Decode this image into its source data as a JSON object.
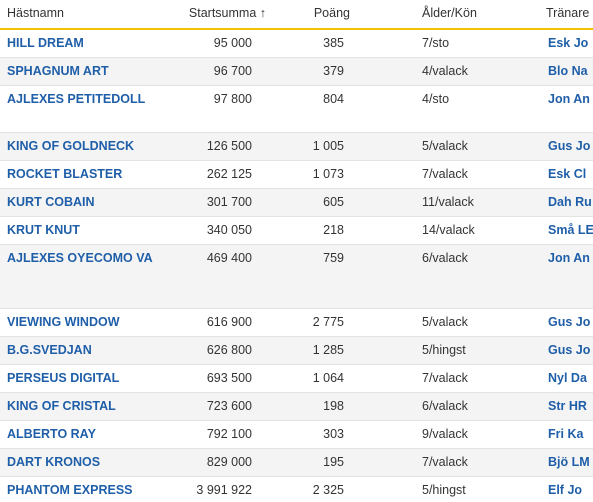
{
  "table": {
    "columns": [
      "Hästnamn",
      "Startsumma ↑",
      "Poäng",
      "Ålder/Kön",
      "Tränare"
    ],
    "rows": [
      [
        "HILL DREAM",
        "95 000",
        "385",
        "7/sto",
        "Esk Jo"
      ],
      [
        "SPHAGNUM ART",
        "96 700",
        "379",
        "4/valack",
        "Blo Na"
      ],
      [
        "AJLEXES PETITEDOLL",
        "97 800",
        "804",
        "4/sto",
        "Jon An"
      ],
      [
        "KING OF GOLDNECK",
        "126 500",
        "1 005",
        "5/valack",
        "Gus Jo"
      ],
      [
        "ROCKET BLASTER",
        "262 125",
        "1 073",
        "7/valack",
        "Esk Cl"
      ],
      [
        "KURT COBAIN",
        "301 700",
        "605",
        "11/valack",
        "Dah Ru"
      ],
      [
        "KRUT KNUT",
        "340 050",
        "218",
        "14/valack",
        "Små LE"
      ],
      [
        "AJLEXES OYECOMO VA",
        "469 400",
        "759",
        "6/valack",
        "Jon An"
      ],
      [
        "VIEWING WINDOW",
        "616 900",
        "2 775",
        "5/valack",
        "Gus Jo"
      ],
      [
        "B.G.SVEDJAN",
        "626 800",
        "1 285",
        "5/hingst",
        "Gus Jo"
      ],
      [
        "PERSEUS DIGITAL",
        "693 500",
        "1 064",
        "7/valack",
        "Nyl Da"
      ],
      [
        "KING OF CRISTAL",
        "723 600",
        "198",
        "6/valack",
        "Str HR"
      ],
      [
        "ALBERTO RAY",
        "792 100",
        "303",
        "9/valack",
        "Fri Ka"
      ],
      [
        "DART KRONOS",
        "829 000",
        "195",
        "7/valack",
        "Bjö LM"
      ],
      [
        "PHANTOM EXPRESS",
        "3 991 922",
        "2 325",
        "5/hingst",
        "Elf Jo"
      ]
    ]
  }
}
